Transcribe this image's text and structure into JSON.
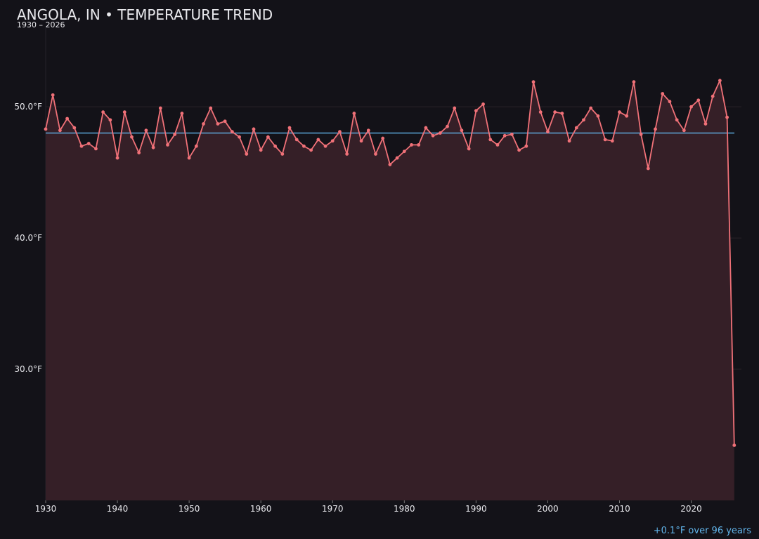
{
  "chart_data": {
    "type": "line",
    "title": "ANGOLA, IN • TEMPERATURE TREND",
    "subtitle": "1930 – 2026",
    "annotation": "+0.1°F over 96 years",
    "color": "#f07178",
    "area_color": "#351f27",
    "mean_color": "#62b6ec",
    "mean": 48.0,
    "x": [
      1930,
      1931,
      1932,
      1933,
      1934,
      1935,
      1936,
      1937,
      1938,
      1939,
      1940,
      1941,
      1942,
      1943,
      1944,
      1945,
      1946,
      1947,
      1948,
      1949,
      1950,
      1951,
      1952,
      1953,
      1954,
      1955,
      1956,
      1957,
      1958,
      1959,
      1960,
      1961,
      1962,
      1963,
      1964,
      1965,
      1966,
      1967,
      1968,
      1969,
      1970,
      1971,
      1972,
      1973,
      1974,
      1975,
      1976,
      1977,
      1978,
      1979,
      1980,
      1981,
      1982,
      1983,
      1984,
      1985,
      1986,
      1987,
      1988,
      1989,
      1990,
      1991,
      1992,
      1993,
      1994,
      1995,
      1996,
      1997,
      1998,
      1999,
      2000,
      2001,
      2002,
      2003,
      2004,
      2005,
      2006,
      2007,
      2008,
      2009,
      2010,
      2011,
      2012,
      2013,
      2014,
      2015,
      2016,
      2017,
      2018,
      2019,
      2020,
      2021,
      2022,
      2023,
      2024,
      2025,
      2026
    ],
    "values": [
      48.3,
      50.9,
      48.2,
      49.1,
      48.4,
      47.0,
      47.2,
      46.8,
      49.6,
      49.0,
      46.1,
      49.6,
      47.7,
      46.5,
      48.2,
      46.9,
      49.9,
      47.1,
      47.9,
      49.5,
      46.1,
      47.0,
      48.7,
      49.9,
      48.7,
      48.9,
      48.1,
      47.7,
      46.4,
      48.3,
      46.7,
      47.7,
      47.0,
      46.4,
      48.4,
      47.5,
      47.0,
      46.7,
      47.5,
      47.0,
      47.4,
      48.1,
      46.4,
      49.5,
      47.4,
      48.2,
      46.4,
      47.6,
      45.6,
      46.1,
      46.6,
      47.1,
      47.1,
      48.4,
      47.8,
      48.0,
      48.5,
      49.9,
      48.2,
      46.8,
      49.7,
      50.2,
      47.5,
      47.1,
      47.8,
      47.9,
      46.7,
      47.0,
      51.9,
      49.6,
      48.1,
      49.6,
      49.5,
      47.4,
      48.4,
      49.0,
      49.9,
      49.3,
      47.5,
      47.4,
      49.6,
      49.3,
      51.9,
      47.9,
      45.3,
      48.3,
      51.0,
      50.4,
      49.0,
      48.2,
      50.0,
      50.5,
      48.7,
      50.8,
      52.0,
      49.2,
      24.2
    ],
    "xlim": [
      1930,
      2027
    ],
    "ylim": [
      20,
      56
    ],
    "xticks": [
      1930,
      1940,
      1950,
      1960,
      1970,
      1980,
      1990,
      2000,
      2010,
      2020
    ],
    "yticks": [
      {
        "value": 30,
        "label": "30.0°F"
      },
      {
        "value": 40,
        "label": "40.0°F"
      },
      {
        "value": 50,
        "label": "50.0°F"
      }
    ],
    "grid": true
  }
}
